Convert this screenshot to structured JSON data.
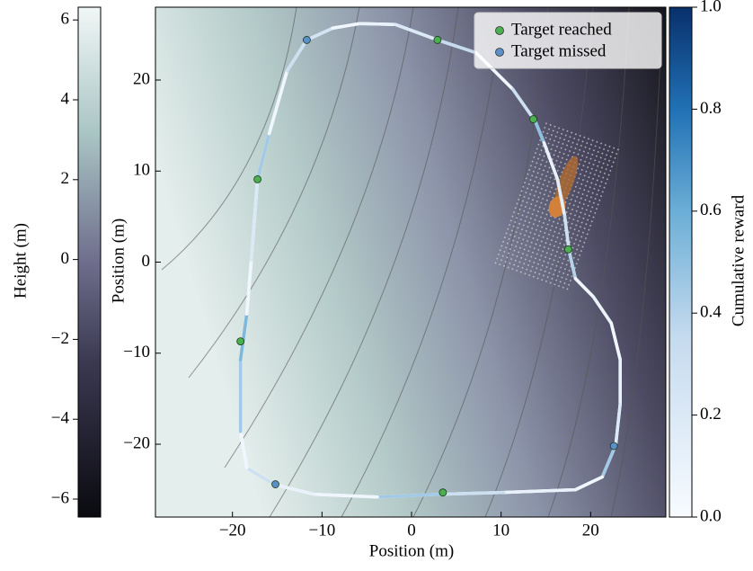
{
  "chart_data": {
    "type": "trajectory",
    "xlabel": "Position (m)",
    "ylabel": "Position (m)",
    "xlim": [
      -28.6,
      28.4
    ],
    "ylim": [
      -28,
      28
    ],
    "xticks": [
      {
        "value": -20,
        "label": "−20"
      },
      {
        "value": -10,
        "label": "−10"
      },
      0,
      10,
      20
    ],
    "yticks": [
      {
        "value": -20,
        "label": "−20"
      },
      {
        "value": -10,
        "label": "−10"
      },
      0,
      10,
      20
    ],
    "path": {
      "x": [
        -11.7,
        -8.8,
        -5.8,
        -1.8,
        2.9,
        7.2,
        11.3,
        13.8,
        14.8,
        16.3,
        17.1,
        17.6,
        18.3,
        20.3,
        22.3,
        23.3,
        23.3,
        22.8,
        21.3,
        18.3,
        10.3,
        3.2,
        -3.8,
        -10.9,
        -15.4,
        -18.4,
        -19.1,
        -19.1,
        -18.4,
        -17.9,
        -17.2,
        -15.9,
        -13.9,
        -11.7
      ],
      "y": [
        24.4,
        25.7,
        26.2,
        26.1,
        24.4,
        23.0,
        19.0,
        15.5,
        13.1,
        9.1,
        5.1,
        1.2,
        -1.8,
        -3.8,
        -6.7,
        -10.7,
        -15.6,
        -20.1,
        -23.6,
        -25.0,
        -25.3,
        -25.5,
        -25.8,
        -25.5,
        -24.4,
        -22.6,
        -18.6,
        -10.7,
        -5.7,
        0.2,
        9.1,
        14.1,
        21.0,
        24.4
      ],
      "reward": [
        0.25,
        0.05,
        0.1,
        0.2,
        0.35,
        0.05,
        0.3,
        0.5,
        0.1,
        0.15,
        0.3,
        0.4,
        0.05,
        0.1,
        0.05,
        0.1,
        0.2,
        0.45,
        0.05,
        0.1,
        0.3,
        0.45,
        0.05,
        0.1,
        0.3,
        0.05,
        0.45,
        0.55,
        0.05,
        0.2,
        0.45,
        0.05,
        0.3,
        0.45
      ]
    },
    "series": [
      {
        "name": "Target reached",
        "color": "#4caf50",
        "x": [
          2.9,
          13.6,
          17.5,
          3.5,
          -19.1,
          -17.2
        ],
        "y": [
          24.4,
          15.7,
          1.4,
          -25.3,
          -8.7,
          9.1
        ]
      },
      {
        "name": "Target missed",
        "color": "#5b8fc7",
        "x": [
          -11.7,
          22.6,
          -15.2
        ],
        "y": [
          24.4,
          -20.2,
          -24.4
        ]
      }
    ],
    "legend": "upper right",
    "height_colorbar": {
      "label": "Height (m)",
      "lim": [
        -6.45,
        6.32
      ],
      "ticks": [
        {
          "value": -6,
          "label": "−6"
        },
        {
          "value": -4,
          "label": "−4"
        },
        {
          "value": -2,
          "label": "−2"
        },
        0,
        2,
        4,
        6
      ]
    },
    "reward_colorbar": {
      "label": "Cumulative reward",
      "lim": [
        0,
        1
      ],
      "ticks": [
        {
          "value": 0,
          "label": "0.0"
        },
        0.2,
        0.4,
        0.6,
        0.8,
        {
          "value": 1,
          "label": "1.0"
        }
      ]
    }
  }
}
